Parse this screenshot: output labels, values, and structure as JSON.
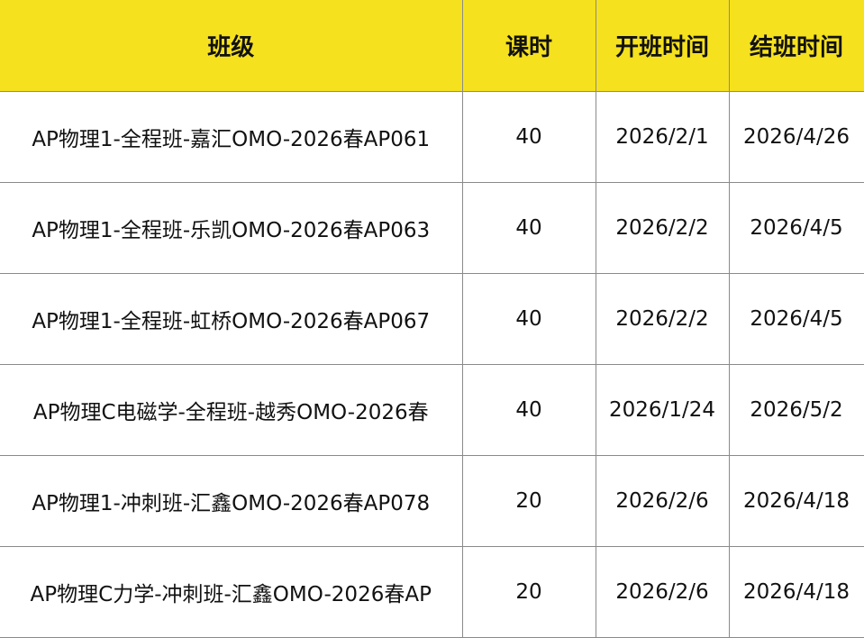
{
  "table": {
    "headers": [
      "班级",
      "课时",
      "开班时间",
      "结班时间"
    ],
    "rows": [
      [
        "AP物理1-全程班-嘉汇OMO-2026春AP061",
        "40",
        "2026/2/1",
        "2026/4/26"
      ],
      [
        "AP物理1-全程班-乐凯OMO-2026春AP063",
        "40",
        "2026/2/2",
        "2026/4/5"
      ],
      [
        "AP物理1-全程班-虹桥OMO-2026春AP067",
        "40",
        "2026/2/2",
        "2026/4/5"
      ],
      [
        "AP物理C电磁学-全程班-越秀OMO-2026春",
        "40",
        "2026/1/24",
        "2026/5/2"
      ],
      [
        "AP物理1-冲刺班-汇鑫OMO-2026春AP078",
        "20",
        "2026/2/6",
        "2026/4/18"
      ],
      [
        "AP物理C力学-冲刺班-汇鑫OMO-2026春AP",
        "20",
        "2026/2/6",
        "2026/4/18"
      ]
    ],
    "header_color": "#f5e11e"
  }
}
